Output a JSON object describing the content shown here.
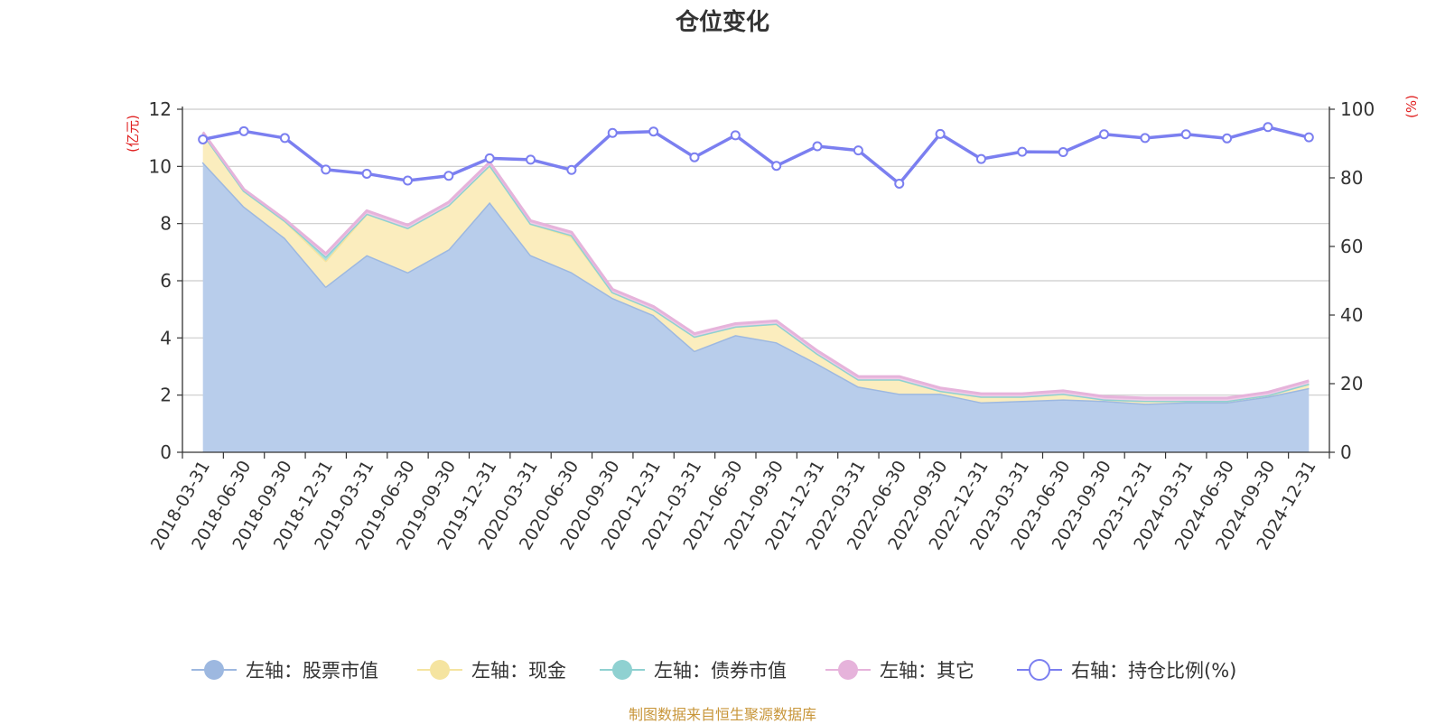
{
  "chart_data": {
    "type": "area",
    "title": "仓位变化",
    "categories": [
      "2018-03-31",
      "2018-06-30",
      "2018-09-30",
      "2018-12-31",
      "2019-03-31",
      "2019-06-30",
      "2019-09-30",
      "2019-12-31",
      "2020-03-31",
      "2020-06-30",
      "2020-09-30",
      "2020-12-31",
      "2021-03-31",
      "2021-06-30",
      "2021-09-30",
      "2021-12-31",
      "2022-03-31",
      "2022-06-30",
      "2022-09-30",
      "2022-12-31",
      "2023-03-31",
      "2023-06-30",
      "2023-09-30",
      "2023-12-31",
      "2024-03-31",
      "2024-06-30",
      "2024-09-30",
      "2024-12-31"
    ],
    "left_axis": {
      "unit": "(亿元)",
      "ylim": [
        0,
        12
      ],
      "ticks": [
        "0",
        "2",
        "4",
        "6",
        "8",
        "10",
        "12"
      ]
    },
    "right_axis": {
      "unit": "(%)",
      "ylim": [
        0,
        100
      ],
      "ticks": [
        "0",
        "20",
        "40",
        "60",
        "80",
        "100"
      ]
    },
    "grid": true,
    "legend_position": "bottom",
    "series": [
      {
        "name": "左轴：股票市值",
        "axis": "left",
        "stack": true,
        "color": "#9db8e0",
        "fill": "#b8cdeb",
        "values": [
          10.15,
          8.6,
          7.5,
          5.8,
          6.9,
          6.3,
          7.1,
          8.75,
          6.9,
          6.3,
          5.4,
          4.8,
          3.55,
          4.1,
          3.85,
          3.1,
          2.3,
          2.05,
          2.05,
          1.75,
          1.8,
          1.85,
          1.8,
          1.7,
          1.75,
          1.75,
          1.95,
          2.25
        ]
      },
      {
        "name": "左轴：现金",
        "axis": "left",
        "stack": true,
        "color": "#f5e4a0",
        "fill": "#fbedbe",
        "values": [
          1.0,
          0.55,
          0.6,
          0.9,
          1.45,
          1.55,
          1.55,
          1.3,
          1.1,
          1.25,
          0.2,
          0.2,
          0.5,
          0.3,
          0.65,
          0.35,
          0.25,
          0.5,
          0.1,
          0.2,
          0.15,
          0.2,
          0.05,
          0.1,
          0.05,
          0.05,
          0.05,
          0.15
        ]
      },
      {
        "name": "左轴：债券市值",
        "axis": "left",
        "stack": true,
        "color": "#8fd1d1",
        "fill": "#aadede",
        "values": [
          0,
          0,
          0,
          0.15,
          0,
          0,
          0,
          0,
          0,
          0.05,
          0,
          0,
          0,
          0,
          0,
          0,
          0,
          0,
          0,
          0,
          0,
          0,
          0,
          0,
          0,
          0,
          0,
          0
        ]
      },
      {
        "name": "左轴：其它",
        "axis": "left",
        "stack": true,
        "color": "#e6b3db",
        "fill": "#efcbe7",
        "values": [
          0.05,
          0.05,
          0.05,
          0.1,
          0.1,
          0.1,
          0.1,
          0.1,
          0.1,
          0.1,
          0.1,
          0.1,
          0.1,
          0.1,
          0.1,
          0.1,
          0.1,
          0.1,
          0.1,
          0.1,
          0.1,
          0.1,
          0.1,
          0.1,
          0.1,
          0.1,
          0.1,
          0.1
        ]
      },
      {
        "name": "右轴：持仓比例(%)",
        "axis": "right",
        "stack": false,
        "color": "#7b7ff0",
        "values": [
          91.2,
          93.6,
          91.6,
          82.4,
          81.2,
          79.2,
          80.6,
          85.7,
          85.3,
          82.3,
          93.1,
          93.5,
          86.0,
          92.4,
          83.5,
          89.2,
          88.0,
          78.3,
          92.8,
          85.5,
          87.6,
          87.5,
          92.7,
          91.6,
          92.7,
          91.5,
          94.8,
          91.8
        ]
      }
    ],
    "source_note": "制图数据来自恒生聚源数据库"
  }
}
